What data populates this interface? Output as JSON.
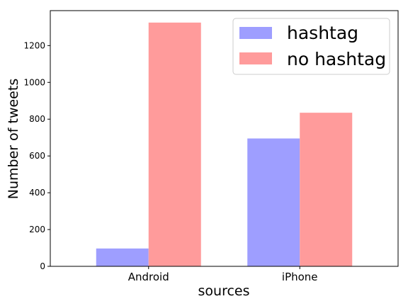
{
  "chart_data": {
    "type": "bar",
    "xlabel": "sources",
    "ylabel": "Number of tweets",
    "categories": [
      "Android",
      "iPhone"
    ],
    "series": [
      {
        "name": "hashtag",
        "values": [
          97,
          695
        ],
        "color": "#9e9eff"
      },
      {
        "name": "no hashtag",
        "values": [
          1325,
          835
        ],
        "color": "#ff9b9b"
      }
    ],
    "ylim": [
      0,
      1390
    ],
    "yticks": [
      0,
      200,
      400,
      600,
      800,
      1000,
      1200
    ],
    "grid": false,
    "legend_position": "top-right"
  }
}
